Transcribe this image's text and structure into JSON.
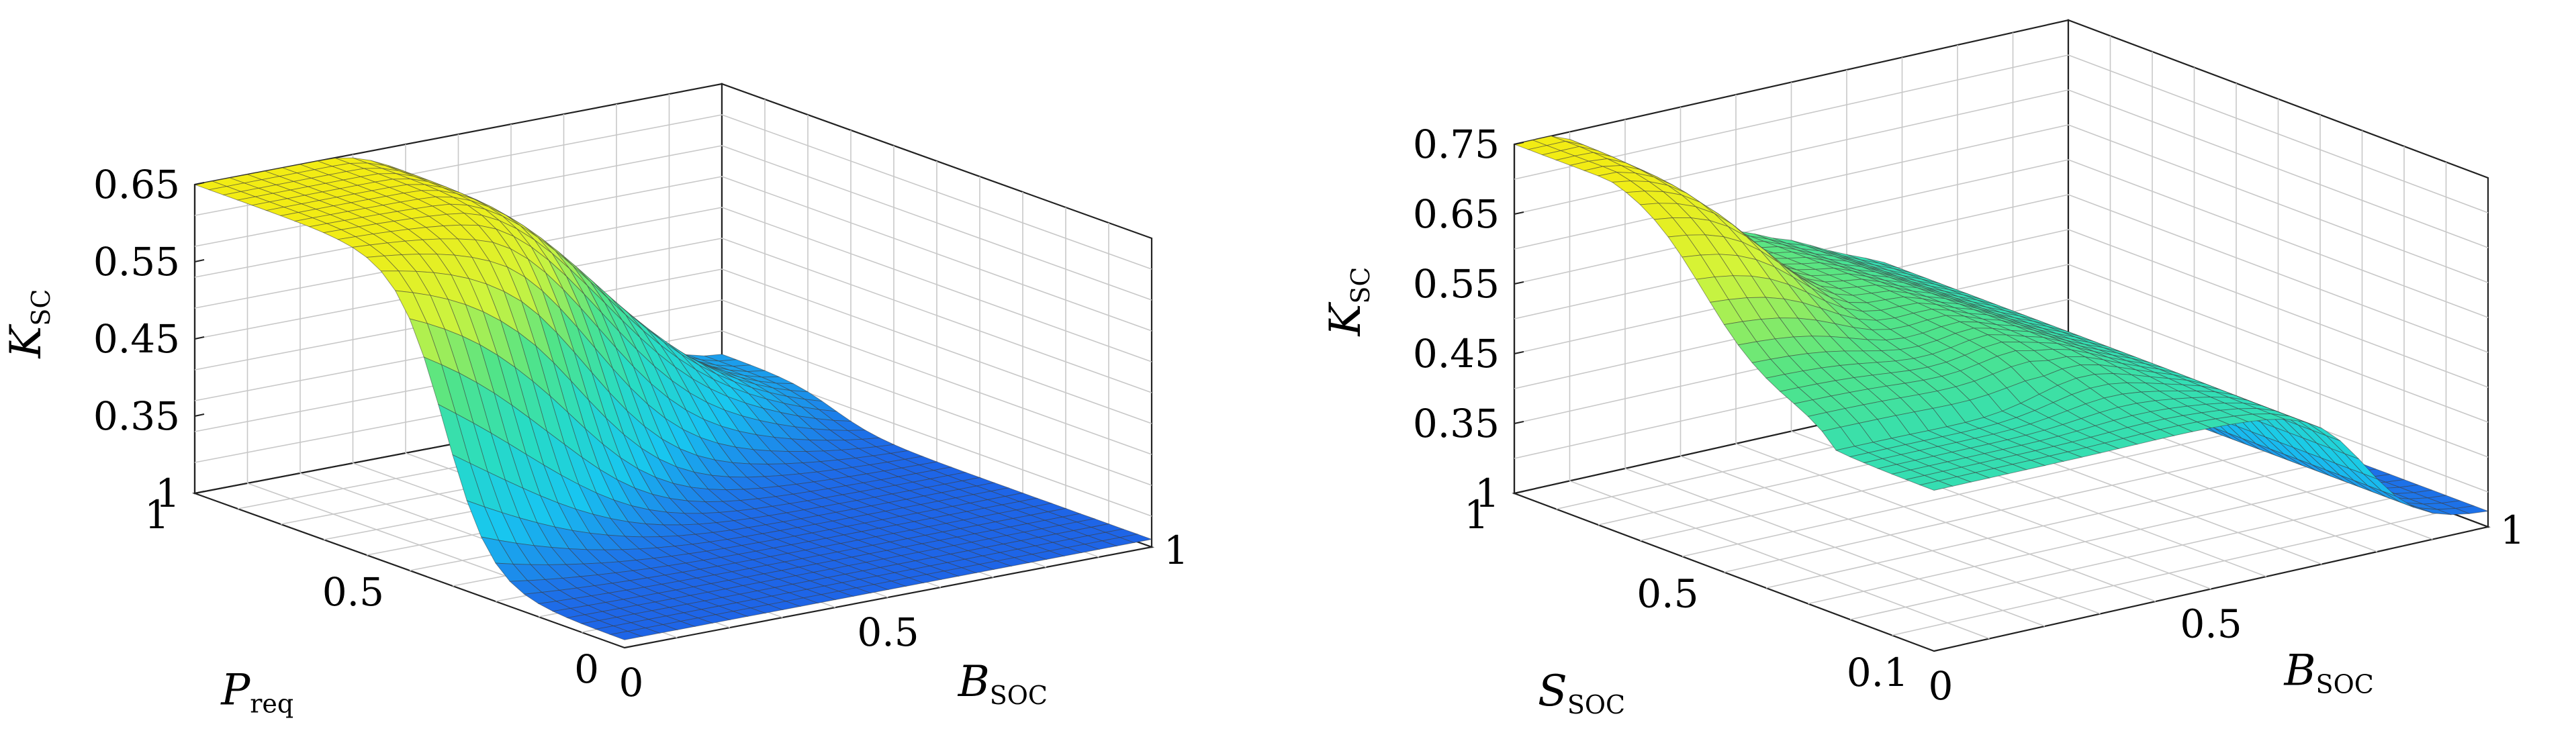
{
  "chart_data": [
    {
      "type": "surface",
      "zlabel": "K",
      "zlabel_sub": "SC",
      "xlabel": "B",
      "xlabel_sub": "SOC",
      "ylabel": "P",
      "ylabel_sub": "req",
      "z_ticks": [
        "1",
        "0.35",
        "0.45",
        "0.55",
        "0.65"
      ],
      "x_ticks": [
        "0",
        "0.5",
        "1"
      ],
      "y_ticks": [
        "0",
        "0.5",
        "1"
      ],
      "x_range": [
        0,
        1
      ],
      "y_range": [
        0,
        1
      ],
      "z_range": [
        0.25,
        0.65
      ],
      "grid": true,
      "colormap": [
        "#1f57e6",
        "#18c6f0",
        "#28dcc4",
        "#52e487",
        "#d2f43a",
        "#f2ec14"
      ],
      "surface_profile": {
        "b_soc": [
          0,
          0.1,
          0.2,
          0.3,
          0.4,
          0.5,
          0.6,
          0.7,
          0.8,
          0.9,
          1.0
        ],
        "k_sc_at_p_req_0": [
          0.26,
          0.26,
          0.26,
          0.26,
          0.26,
          0.26,
          0.26,
          0.26,
          0.26,
          0.26,
          0.26
        ],
        "k_sc_at_p_req_0.5": [
          0.52,
          0.49,
          0.42,
          0.4,
          0.36,
          0.31,
          0.28,
          0.27,
          0.26,
          0.26,
          0.26
        ],
        "k_sc_at_p_req_1": [
          0.65,
          0.65,
          0.65,
          0.64,
          0.62,
          0.57,
          0.52,
          0.46,
          0.42,
          0.35,
          0.3
        ]
      }
    },
    {
      "type": "surface",
      "zlabel": "K",
      "zlabel_sub": "SC",
      "xlabel": "B",
      "xlabel_sub": "SOC",
      "ylabel": "S",
      "ylabel_sub": "SOC",
      "z_ticks": [
        "1",
        "0.35",
        "0.45",
        "0.55",
        "0.65",
        "0.75"
      ],
      "x_ticks": [
        "0",
        "0.5",
        "1"
      ],
      "y_ticks": [
        "0.1",
        "0.5",
        "1"
      ],
      "x_range": [
        0,
        1
      ],
      "y_range": [
        0.1,
        1
      ],
      "z_range": [
        0.25,
        0.75
      ],
      "grid": true,
      "colormap": [
        "#1f57e6",
        "#18c6f0",
        "#28dcc4",
        "#52e487",
        "#d2f43a",
        "#f2ec14"
      ],
      "surface_profile": {
        "b_soc": [
          0,
          0.1,
          0.2,
          0.3,
          0.4,
          0.5,
          0.6,
          0.7,
          0.8,
          0.9,
          1.0
        ],
        "k_sc_at_s_soc_0.1": [
          0.52,
          0.5,
          0.48,
          0.47,
          0.48,
          0.5,
          0.5,
          0.45,
          0.35,
          0.3,
          0.28
        ],
        "k_sc_at_s_soc_0.5": [
          0.6,
          0.55,
          0.5,
          0.48,
          0.49,
          0.5,
          0.46,
          0.4,
          0.32,
          0.28,
          0.27
        ],
        "k_sc_at_s_soc_1": [
          0.75,
          0.72,
          0.65,
          0.56,
          0.5,
          0.48,
          0.45,
          0.4,
          0.33,
          0.29,
          0.27
        ]
      }
    }
  ]
}
